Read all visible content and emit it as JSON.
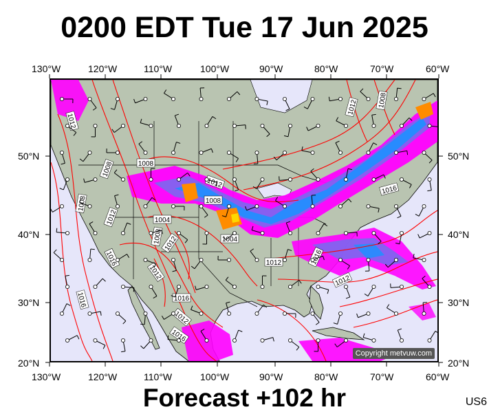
{
  "title": "0200 EDT Tue 17 Jun 2025",
  "forecast_label": "Forecast +102 hr",
  "model_code": "US6",
  "copyright": "Copyright metvuw.com",
  "longitude_labels": [
    "130°W",
    "120°W",
    "110°W",
    "100°W",
    "90°W",
    "80°W",
    "70°W",
    "60°W"
  ],
  "latitude_labels": [
    "50°N",
    "40°N",
    "30°N",
    "20°N"
  ],
  "isobar_labels": [
    "1012",
    "1008",
    "1008",
    "1008",
    "1012",
    "1008",
    "1004",
    "1004",
    "1008",
    "1012",
    "1016",
    "1012",
    "1016",
    "1012",
    "1016",
    "1012",
    "1016",
    "1012",
    "1008",
    "1012",
    "1016",
    "1016",
    "1012"
  ],
  "colors": {
    "ocean": "#e6e6fa",
    "land": "#b9c4b1",
    "isobar": "#ff0000",
    "rain_light": "#ff00ff",
    "rain_mid": "#1e90ff",
    "rain_heavy": "#ff8c00"
  },
  "legend_icons": [
    "wind-barb-icon",
    "station-circle-icon"
  ]
}
